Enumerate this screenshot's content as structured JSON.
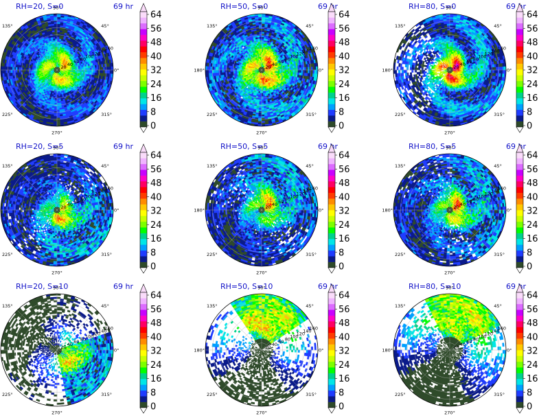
{
  "chart_data": {
    "type": "heatmap",
    "projection": "polar",
    "grid": true,
    "angle_ticks": [
      "90°",
      "45°",
      "0°",
      "315°",
      "270°",
      "225°",
      "180°",
      "135°"
    ],
    "radial_ticks": [
      "20",
      "40",
      "60",
      "80",
      "100",
      "120",
      "140",
      "160"
    ],
    "radial_range": [
      0,
      160
    ],
    "colorbar": {
      "ticks": [
        "0",
        "8",
        "16",
        "24",
        "32",
        "40",
        "48",
        "56",
        "64"
      ],
      "range": [
        0,
        64
      ],
      "extend": "both",
      "colors": [
        "#ffffff",
        "#2e4a2a",
        "#0a1a8a",
        "#1f3cff",
        "#00a0ff",
        "#00e6e6",
        "#00d28c",
        "#00ff00",
        "#7cff00",
        "#c8ff00",
        "#ffff00",
        "#ffc800",
        "#ff8c00",
        "#ff3c00",
        "#ff0000",
        "#ff0064",
        "#ff00c8",
        "#c800ff",
        "#dc6cff",
        "#f0b4ff",
        "#fadcfa"
      ]
    },
    "panels": [
      {
        "title": "RH=20, S=0",
        "time": "69 hr",
        "max": 46,
        "peak_radius": 30,
        "coverage": 1.0,
        "asym_angle": 0,
        "asym_strength": 0.2,
        "texture": 0.35
      },
      {
        "title": "RH=50, S=0",
        "time": "69 hr",
        "max": 54,
        "peak_radius": 30,
        "coverage": 0.93,
        "asym_angle": 0,
        "asym_strength": 0.2,
        "texture": 0.45
      },
      {
        "title": "RH=80, S=0",
        "time": "69 hr",
        "max": 62,
        "peak_radius": 22,
        "coverage": 0.75,
        "asym_angle": 0,
        "asym_strength": 0.2,
        "texture": 0.3
      },
      {
        "title": "RH=20, S=5",
        "time": "69 hr",
        "max": 50,
        "peak_radius": 25,
        "coverage": 0.8,
        "asym_angle": 315,
        "asym_strength": 0.5,
        "texture": 0.55
      },
      {
        "title": "RH=50, S=5",
        "time": "69 hr",
        "max": 50,
        "peak_radius": 28,
        "coverage": 0.8,
        "asym_angle": 45,
        "asym_strength": 0.5,
        "texture": 0.55
      },
      {
        "title": "RH=80, S=5",
        "time": "69 hr",
        "max": 54,
        "peak_radius": 25,
        "coverage": 0.82,
        "asym_angle": 15,
        "asym_strength": 0.45,
        "texture": 0.5
      },
      {
        "title": "RH=20, S=10",
        "time": "69 hr",
        "max": 46,
        "peak_radius": 45,
        "coverage": 0.45,
        "asym_angle": 330,
        "asym_strength": 0.9,
        "texture": 0.7
      },
      {
        "title": "RH=50, S=10",
        "time": "69 hr",
        "max": 50,
        "peak_radius": 95,
        "coverage": 0.4,
        "asym_angle": 80,
        "asym_strength": 1.0,
        "texture": 0.6
      },
      {
        "title": "RH=80, S=10",
        "time": "69 hr",
        "max": 48,
        "peak_radius": 110,
        "coverage": 0.5,
        "asym_angle": 70,
        "asym_strength": 1.0,
        "texture": 0.6
      }
    ]
  }
}
